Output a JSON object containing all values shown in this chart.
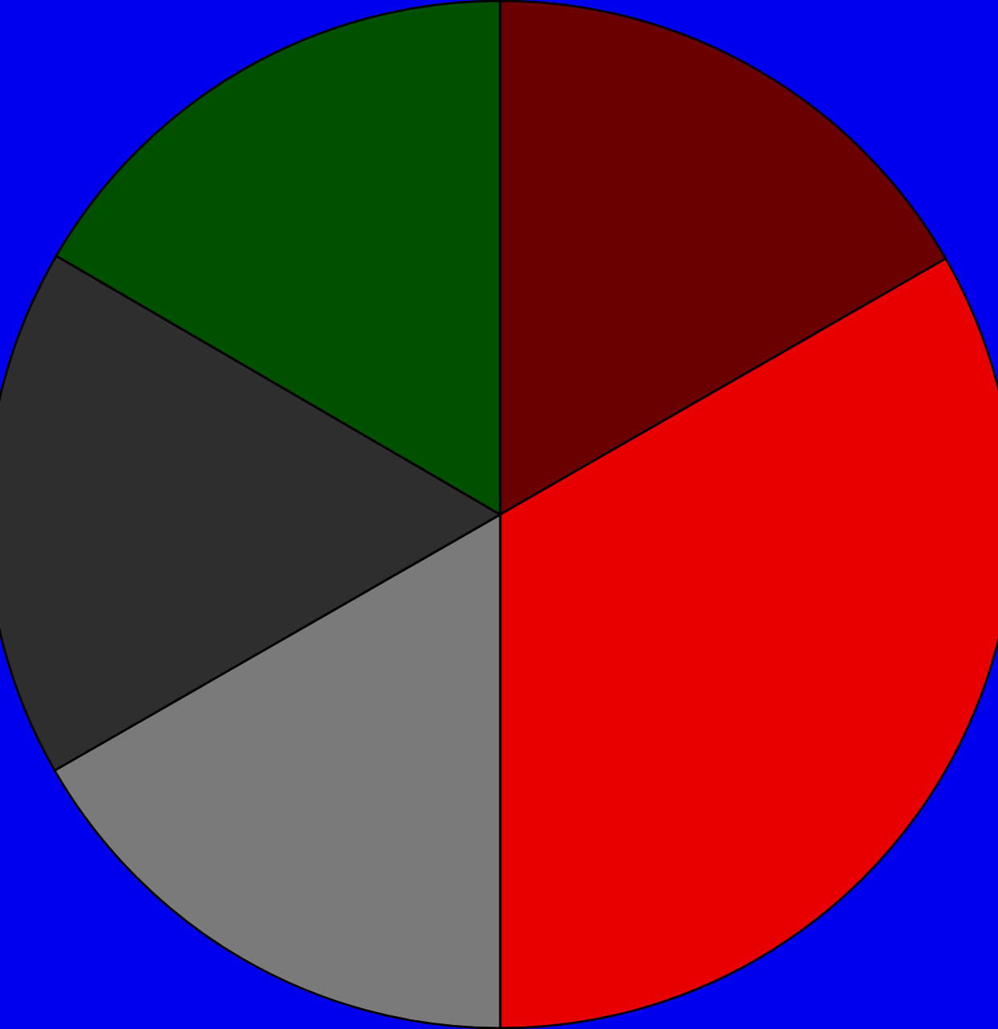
{
  "chart_data": {
    "type": "pie",
    "categories": [
      null,
      null,
      null,
      null,
      null
    ],
    "values": [
      16.7,
      33.3,
      16.7,
      16.7,
      16.6
    ],
    "colors": [
      "#6a0000",
      "#e80000",
      "#7a7a7a",
      "#2e2e2e",
      "#005000"
    ]
  }
}
